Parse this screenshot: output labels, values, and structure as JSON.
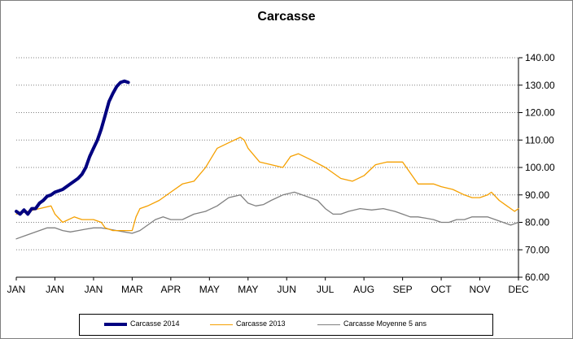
{
  "chart_data": {
    "type": "line",
    "title": "Carcasse",
    "categories": [
      "JAN",
      "JAN",
      "JAN",
      "MAR",
      "APR",
      "MAY",
      "MAY",
      "JUN",
      "JUL",
      "AUG",
      "SEP",
      "OCT",
      "NOV",
      "DEC"
    ],
    "y_tick_labels": [
      "60.00",
      "70.00",
      "80.00",
      "90.00",
      "100.00",
      "110.00",
      "120.00",
      "130.00",
      "140.00"
    ],
    "ylim": [
      60,
      140
    ],
    "y_axis_side": "right",
    "grid": "horizontal dotted",
    "legend_position": "bottom",
    "series": [
      {
        "name": "Carcasse 2014",
        "color": "#000080",
        "x": [
          0,
          0.1,
          0.2,
          0.3,
          0.4,
          0.5,
          0.6,
          0.7,
          0.8,
          0.9,
          1.0,
          1.1,
          1.2,
          1.3,
          1.4,
          1.5,
          1.6,
          1.7,
          1.8,
          1.9,
          2.0,
          2.1,
          2.2,
          2.3,
          2.4,
          2.5,
          2.6,
          2.7,
          2.8,
          2.9
        ],
        "values": [
          84,
          83,
          84.5,
          83,
          85,
          85,
          87,
          88,
          89.5,
          90,
          91,
          91.5,
          92,
          93,
          94,
          95,
          96,
          97.5,
          100,
          104,
          107,
          110,
          114,
          119,
          124,
          127,
          129.5,
          131,
          131.5,
          131
        ]
      },
      {
        "name": "Carcasse 2013",
        "color": "#f5a000",
        "x": [
          0,
          0.3,
          0.6,
          0.9,
          1.0,
          1.2,
          1.5,
          1.7,
          2.0,
          2.2,
          2.3,
          2.5,
          2.7,
          3.0,
          3.1,
          3.2,
          3.4,
          3.7,
          4.0,
          4.3,
          4.6,
          4.9,
          5.2,
          5.5,
          5.8,
          5.9,
          6.0,
          6.3,
          6.6,
          6.9,
          7.1,
          7.3,
          7.6,
          8.0,
          8.4,
          8.7,
          9.0,
          9.3,
          9.6,
          9.8,
          10.0,
          10.4,
          10.8,
          11.0,
          11.3,
          11.6,
          11.8,
          12.0,
          12.2,
          12.3,
          12.5,
          12.7,
          12.9,
          13.0
        ],
        "values": [
          83,
          84,
          85,
          86,
          83,
          80,
          82,
          81,
          81,
          80,
          78,
          77,
          77,
          77,
          82,
          85,
          86,
          88,
          91,
          94,
          95,
          100,
          107,
          109,
          111,
          110,
          107,
          102,
          101,
          100,
          104,
          105,
          103,
          100,
          96,
          95,
          97,
          101,
          102,
          102,
          102,
          94,
          94,
          93,
          92,
          90,
          89,
          89,
          90,
          91,
          88,
          86,
          84,
          85
        ]
      },
      {
        "name": "Carcasse Moyenne 5 ans",
        "color": "#808080",
        "x": [
          0,
          0.2,
          0.4,
          0.6,
          0.8,
          1.0,
          1.2,
          1.4,
          1.6,
          1.8,
          2.0,
          2.2,
          2.4,
          2.6,
          2.8,
          3.0,
          3.2,
          3.4,
          3.6,
          3.8,
          4.0,
          4.3,
          4.6,
          4.9,
          5.2,
          5.5,
          5.8,
          6.0,
          6.2,
          6.4,
          6.6,
          6.9,
          7.2,
          7.5,
          7.8,
          8.0,
          8.2,
          8.4,
          8.6,
          8.9,
          9.2,
          9.5,
          9.8,
          10.0,
          10.2,
          10.4,
          10.6,
          10.8,
          11.0,
          11.2,
          11.4,
          11.6,
          11.8,
          12.0,
          12.2,
          12.4,
          12.6,
          12.8,
          13.0
        ],
        "values": [
          74,
          75,
          76,
          77,
          78,
          78,
          77,
          76.5,
          77,
          77.5,
          78,
          78,
          77.5,
          77,
          76.5,
          76,
          77,
          79,
          81,
          82,
          81,
          81,
          83,
          84,
          86,
          89,
          90,
          87,
          86,
          86.5,
          88,
          90,
          91,
          89.5,
          88,
          85,
          83,
          83,
          84,
          85,
          84.5,
          85,
          84,
          83,
          82,
          82,
          81.5,
          81,
          80,
          80,
          81,
          81,
          82,
          82,
          82,
          81,
          80,
          79,
          80
        ]
      }
    ]
  }
}
